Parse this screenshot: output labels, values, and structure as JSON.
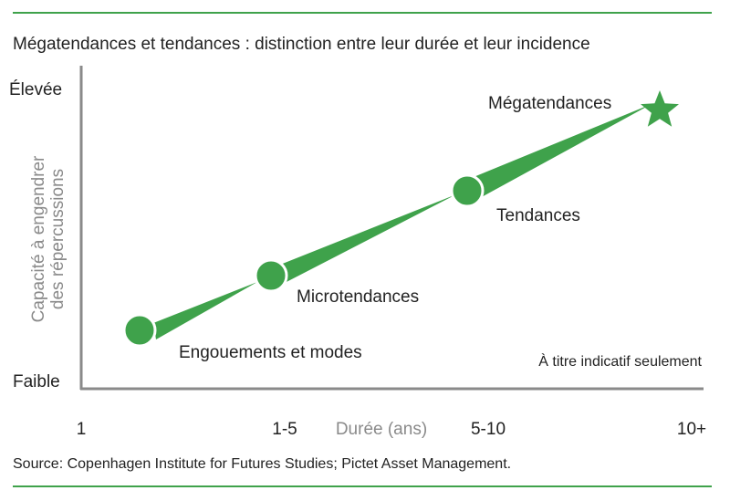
{
  "title": "Mégatendances et tendances : distinction entre leur durée et leur incidence",
  "accent_color": "#3fa24b",
  "rule_color": "#3fa24b",
  "axis_color": "#8a8a8a",
  "y_axis": {
    "label_line1": "Capacité à engendrer",
    "label_line2": "des répercussions",
    "top_label": "Élevée",
    "bottom_label": "Faible"
  },
  "x_axis": {
    "label": "Durée (ans)",
    "ticks": [
      "1",
      "1-5",
      "5-10",
      "10+"
    ]
  },
  "note": "À titre indicatif seulement",
  "source": "Source: Copenhagen Institute for Futures Studies; Pictet Asset Management.",
  "stages": [
    {
      "label": "Engouements et modes",
      "marker": "circle"
    },
    {
      "label": "Microtendances",
      "marker": "circle"
    },
    {
      "label": "Tendances",
      "marker": "circle"
    },
    {
      "label": "Mégatendances",
      "marker": "star-icon"
    }
  ]
}
